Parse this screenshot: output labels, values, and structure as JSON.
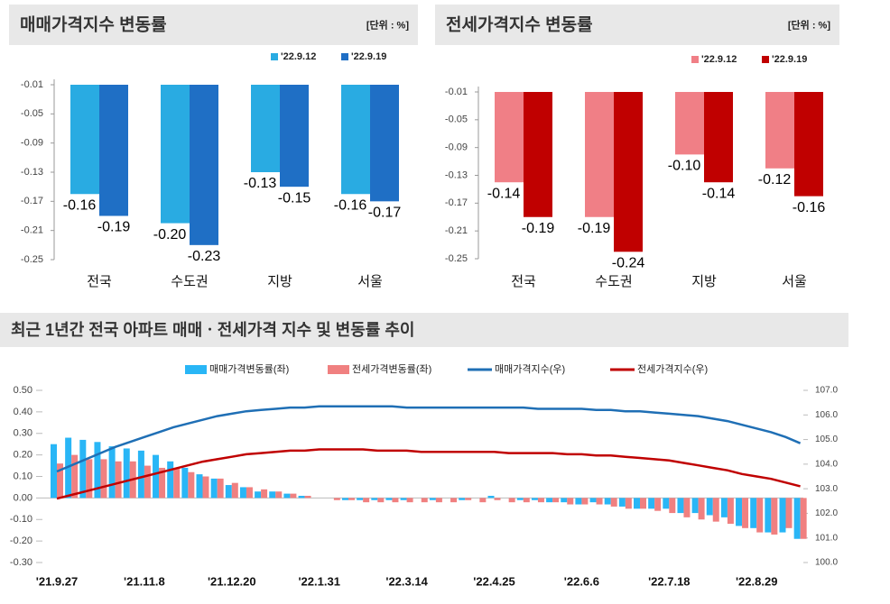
{
  "chart_data": [
    {
      "type": "bar",
      "title": "매매가격지수 변동률",
      "unit": "[단위 : %]",
      "categories": [
        "전국",
        "수도권",
        "지방",
        "서울"
      ],
      "series": [
        {
          "name": "'22.9.12",
          "color": "#29abe2",
          "values": [
            -0.16,
            -0.2,
            -0.13,
            -0.16
          ],
          "value_labels": [
            "-0.16",
            "-0.20",
            "-0.13",
            "-0.16"
          ]
        },
        {
          "name": "'22.9.19",
          "color": "#1f6fc5",
          "values": [
            -0.19,
            -0.23,
            -0.15,
            -0.17
          ],
          "value_labels": [
            "-0.19",
            "-0.23",
            "-0.15",
            "-0.17"
          ]
        }
      ],
      "ylim": [
        -0.25,
        -0.01
      ],
      "yticks": [
        -0.01,
        -0.05,
        -0.09,
        -0.13,
        -0.17,
        -0.21,
        -0.25
      ],
      "grid": false
    },
    {
      "type": "bar",
      "title": "전세가격지수 변동률",
      "unit": "[단위 : %]",
      "categories": [
        "전국",
        "수도권",
        "지방",
        "서울"
      ],
      "series": [
        {
          "name": "'22.9.12",
          "color": "#f07f86",
          "values": [
            -0.14,
            -0.19,
            -0.1,
            -0.12
          ],
          "value_labels": [
            "-0.14",
            "-0.19",
            "-0.10",
            "-0.12"
          ]
        },
        {
          "name": "'22.9.19",
          "color": "#c00000",
          "values": [
            -0.19,
            -0.24,
            -0.14,
            -0.16
          ],
          "value_labels": [
            "-0.19",
            "-0.24",
            "-0.14",
            "-0.16"
          ]
        }
      ],
      "ylim": [
        -0.25,
        -0.01
      ],
      "yticks": [
        -0.01,
        -0.05,
        -0.09,
        -0.13,
        -0.17,
        -0.21,
        -0.25
      ],
      "grid": false
    },
    {
      "type": "combo",
      "title": "최근 1년간 전국 아파트 매매ㆍ전세가격 지수 및 변동률 추이",
      "categories": [
        "'21.9.27",
        null,
        null,
        null,
        null,
        null,
        "'21.11.8",
        null,
        null,
        null,
        null,
        null,
        "'21.12.20",
        null,
        null,
        null,
        null,
        null,
        "'22.1.31",
        null,
        null,
        null,
        null,
        null,
        "'22.3.14",
        null,
        null,
        null,
        null,
        null,
        "'22.4.25",
        null,
        null,
        null,
        null,
        null,
        "'22.6.6",
        null,
        null,
        null,
        null,
        null,
        "'22.7.18",
        null,
        null,
        null,
        null,
        null,
        "'22.8.29",
        null,
        null,
        null
      ],
      "series": [
        {
          "name": "매매가격변동률(좌)",
          "type": "bar",
          "color": "#29b6f6",
          "values": [
            0.25,
            0.28,
            0.27,
            0.26,
            0.24,
            0.23,
            0.22,
            0.2,
            0.17,
            0.14,
            0.11,
            0.09,
            0.06,
            0.05,
            0.03,
            0.03,
            0.02,
            0.01,
            0.0,
            0.0,
            -0.01,
            -0.01,
            -0.01,
            -0.01,
            -0.01,
            0.0,
            -0.01,
            0.0,
            -0.01,
            0.0,
            0.01,
            0.0,
            -0.01,
            -0.01,
            -0.02,
            -0.02,
            -0.03,
            -0.02,
            -0.03,
            -0.04,
            -0.05,
            -0.05,
            -0.05,
            -0.07,
            -0.07,
            -0.08,
            -0.09,
            -0.13,
            -0.14,
            -0.16,
            -0.16,
            -0.19
          ]
        },
        {
          "name": "전세가격변동률(좌)",
          "type": "bar",
          "color": "#f08080",
          "values": [
            0.16,
            0.2,
            0.18,
            0.18,
            0.17,
            0.17,
            0.15,
            0.14,
            0.14,
            0.12,
            0.1,
            0.09,
            0.07,
            0.05,
            0.04,
            0.03,
            0.02,
            0.01,
            0.0,
            -0.01,
            -0.01,
            -0.02,
            -0.02,
            -0.02,
            -0.02,
            -0.02,
            -0.02,
            -0.02,
            -0.01,
            -0.02,
            -0.01,
            -0.02,
            -0.02,
            -0.02,
            -0.02,
            -0.03,
            -0.03,
            -0.03,
            -0.04,
            -0.05,
            -0.05,
            -0.06,
            -0.07,
            -0.09,
            -0.1,
            -0.11,
            -0.12,
            -0.14,
            -0.16,
            -0.17,
            -0.14,
            -0.19
          ]
        },
        {
          "name": "매매가격지수(우)",
          "type": "line",
          "axis": "y2",
          "color": "#1f6fb5",
          "values": [
            103.7,
            103.95,
            104.2,
            104.45,
            104.7,
            104.9,
            105.1,
            105.3,
            105.5,
            105.65,
            105.8,
            105.95,
            106.05,
            106.15,
            106.2,
            106.25,
            106.3,
            106.3,
            106.35,
            106.35,
            106.35,
            106.35,
            106.35,
            106.35,
            106.3,
            106.3,
            106.3,
            106.3,
            106.3,
            106.3,
            106.3,
            106.3,
            106.3,
            106.25,
            106.25,
            106.25,
            106.25,
            106.2,
            106.2,
            106.15,
            106.15,
            106.1,
            106.05,
            106.0,
            105.95,
            105.85,
            105.75,
            105.6,
            105.45,
            105.3,
            105.1,
            104.85
          ]
        },
        {
          "name": "전세가격지수(우)",
          "type": "line",
          "axis": "y2",
          "color": "#c00000",
          "values": [
            102.6,
            102.75,
            102.9,
            103.05,
            103.2,
            103.35,
            103.5,
            103.65,
            103.8,
            103.95,
            104.1,
            104.2,
            104.3,
            104.4,
            104.45,
            104.5,
            104.55,
            104.55,
            104.6,
            104.6,
            104.6,
            104.6,
            104.55,
            104.55,
            104.55,
            104.5,
            104.5,
            104.5,
            104.5,
            104.5,
            104.5,
            104.45,
            104.45,
            104.45,
            104.45,
            104.4,
            104.4,
            104.35,
            104.35,
            104.3,
            104.25,
            104.2,
            104.15,
            104.05,
            103.95,
            103.85,
            103.75,
            103.6,
            103.5,
            103.4,
            103.25,
            103.1
          ]
        }
      ],
      "ylim": [
        -0.3,
        0.5
      ],
      "yticks": [
        {
          "value": -0.3,
          "label": "-0.30"
        },
        {
          "value": -0.2,
          "label": "-0.20"
        },
        {
          "value": -0.1,
          "label": "-0.10"
        },
        {
          "value": 0,
          "label": "0.00"
        },
        {
          "value": 0.1,
          "label": "0.10"
        },
        {
          "value": 0.2,
          "label": "0.20"
        },
        {
          "value": 0.3,
          "label": "0.30"
        },
        {
          "value": 0.4,
          "label": "0.40"
        },
        {
          "value": 0.5,
          "label": "0.50"
        }
      ],
      "y2lim": [
        100,
        107
      ],
      "y2ticks": [
        {
          "value": 100,
          "label": "100.0"
        },
        {
          "value": 101,
          "label": "101.0"
        },
        {
          "value": 102,
          "label": "102.0"
        },
        {
          "value": 103,
          "label": "103.0"
        },
        {
          "value": 104,
          "label": "104.0"
        },
        {
          "value": 105,
          "label": "105.0"
        },
        {
          "value": 106,
          "label": "106.0"
        },
        {
          "value": 107,
          "label": "107.0"
        }
      ],
      "grid": false
    }
  ]
}
